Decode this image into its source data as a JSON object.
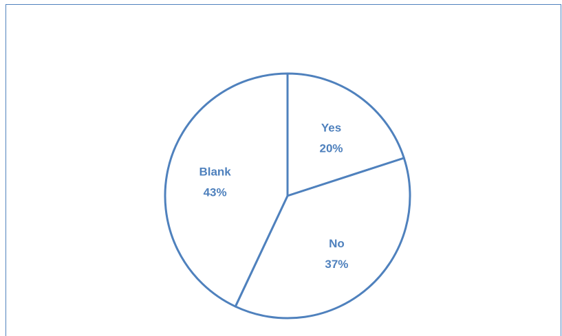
{
  "chart_data": {
    "type": "pie",
    "title": "",
    "slices": [
      {
        "label": "Yes",
        "value": 20,
        "percent_label": "20%"
      },
      {
        "label": "No",
        "value": 37,
        "percent_label": "37%"
      },
      {
        "label": "Blank",
        "value": 43,
        "percent_label": "43%"
      }
    ],
    "start_angle_deg": 0,
    "direction": "clockwise",
    "legend": "none",
    "colors": {
      "stroke": "#4f81bd",
      "fill": "#ffffff",
      "label": "#4f81bd",
      "frame": "#4f81bd"
    }
  }
}
